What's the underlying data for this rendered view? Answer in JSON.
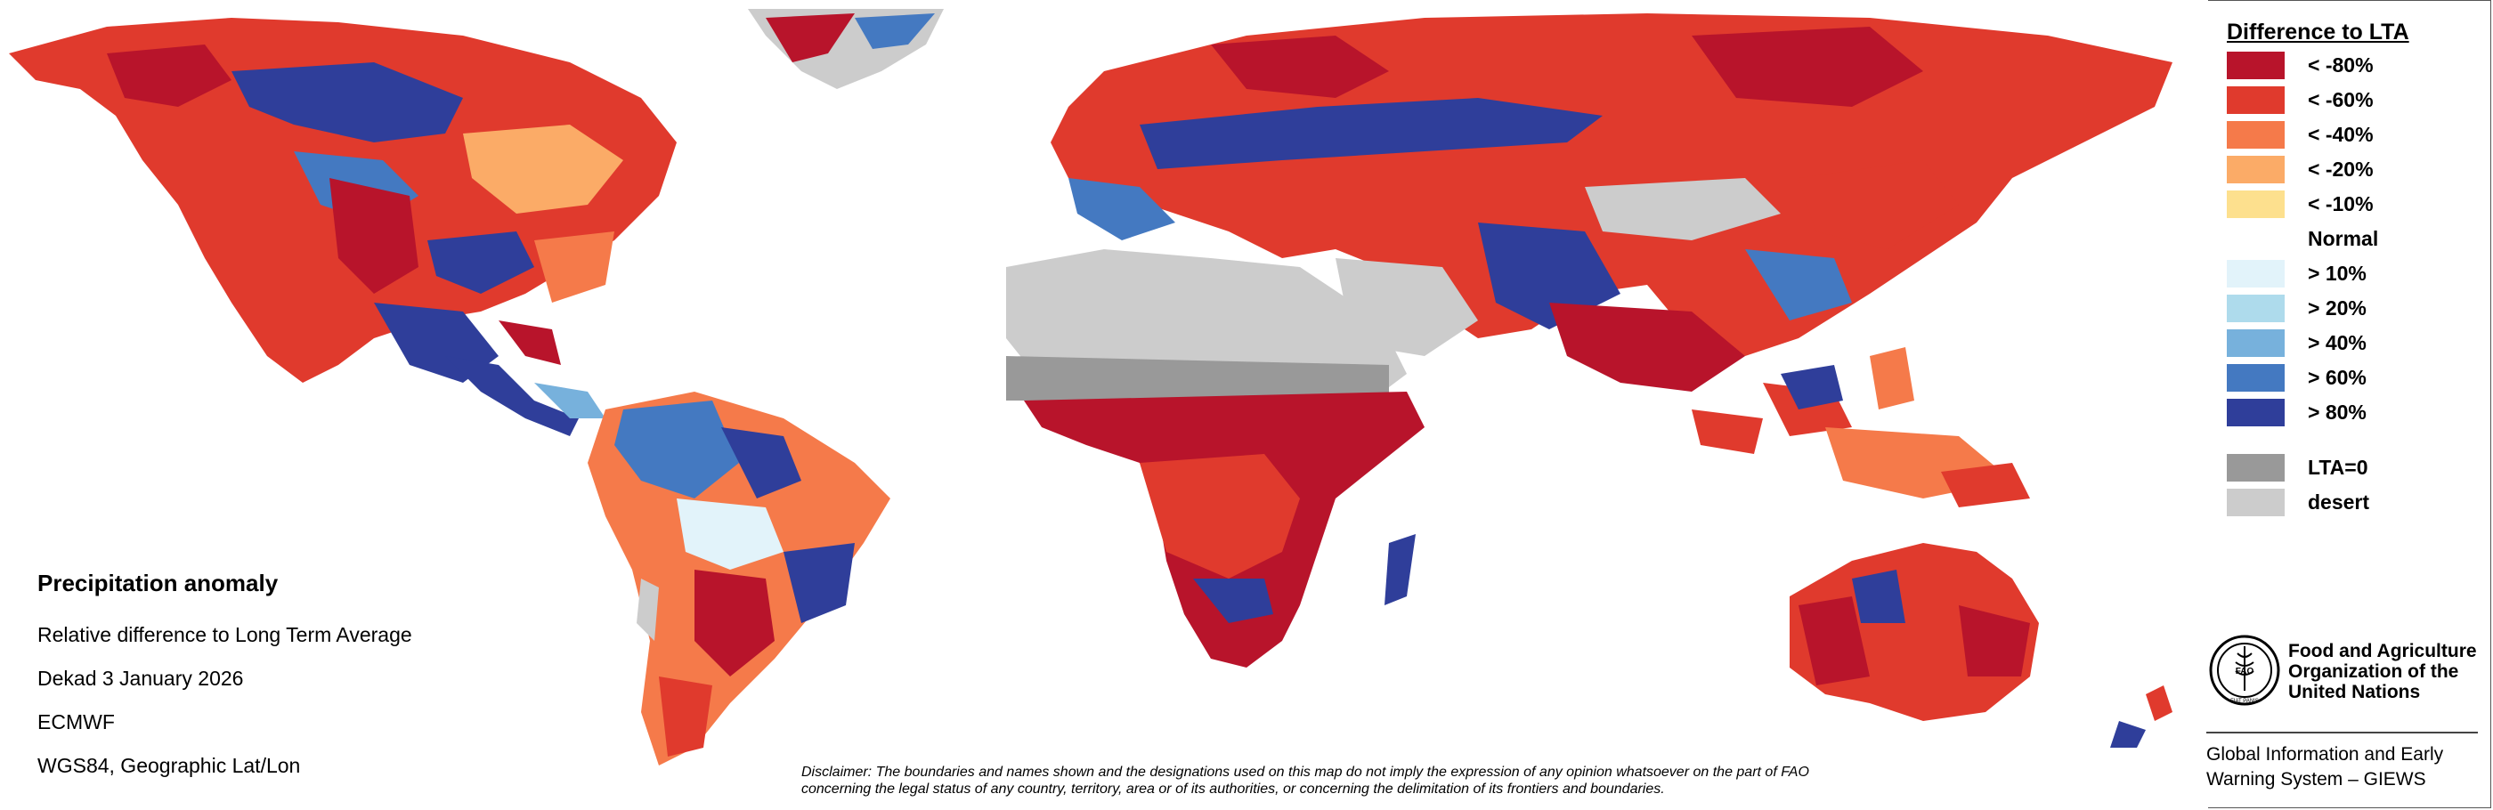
{
  "map": {
    "title": "Precipitation anomaly",
    "subtitle": "Relative difference to Long Term Average",
    "period": "Dekad 3 January 2026",
    "source": "ECMWF",
    "projection": "WGS84, Geographic Lat/Lon"
  },
  "legend": {
    "title": "Difference to LTA",
    "items": [
      {
        "label": "< -80%",
        "color": "#b8142b"
      },
      {
        "label": "< -60%",
        "color": "#e03a2d"
      },
      {
        "label": "< -40%",
        "color": "#f57a4a"
      },
      {
        "label": "< -20%",
        "color": "#fbab67"
      },
      {
        "label": "< -10%",
        "color": "#fde08e"
      },
      {
        "label": "Normal",
        "color": "#ffffff"
      },
      {
        "label": "> 10%",
        "color": "#e2f3fa"
      },
      {
        "label": "> 20%",
        "color": "#aedbec"
      },
      {
        "label": "> 40%",
        "color": "#77b1dc"
      },
      {
        "label": "> 60%",
        "color": "#4479c1"
      },
      {
        "label": "> 80%",
        "color": "#2f3e9a"
      },
      {
        "label": "LTA=0",
        "color": "#999999"
      },
      {
        "label": "desert",
        "color": "#cccccc"
      }
    ]
  },
  "disclaimer": {
    "line1": "Disclaimer: The boundaries and names shown and the designations used on this map do not imply the expression of any opinion whatsoever on the part of FAO",
    "line2": "concerning the legal status of any country, territory, area or of its authorities, or concerning the delimitation of its frontiers and boundaries."
  },
  "organization": {
    "name_line1": "Food and Agriculture",
    "name_line2": "Organization of the",
    "name_line3": "United Nations",
    "emblem_text": "FIAT PANIS",
    "emblem_letters": "FAO",
    "system_line1": "Global Information and Early",
    "system_line2": "Warning System – GIEWS"
  }
}
